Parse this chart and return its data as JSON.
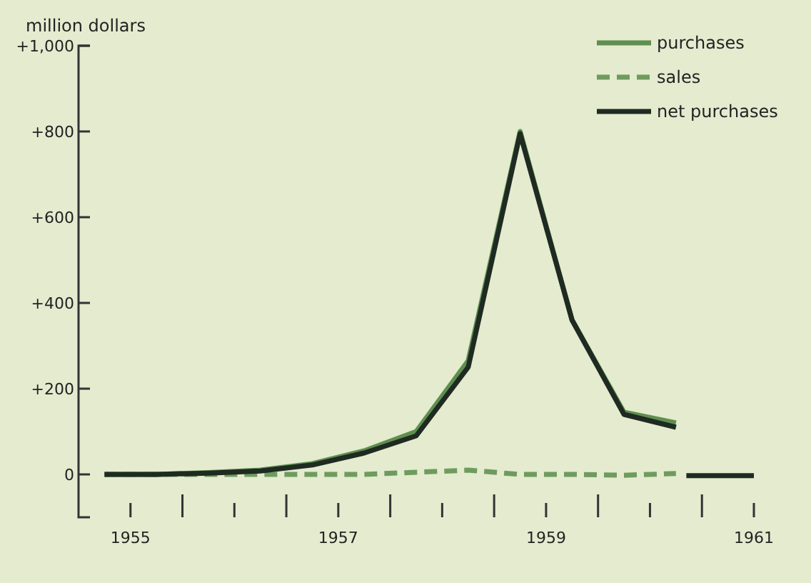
{
  "chart_data": {
    "type": "line",
    "ylabel": "million dollars",
    "xlim": [
      1954.5,
      1961
    ],
    "ylim": [
      -100,
      1000
    ],
    "xticks": [
      1955,
      {
        "value": 1955.5,
        "label": null
      },
      {
        "value": 1956,
        "label": null
      },
      {
        "value": 1956.5,
        "label": null
      },
      1957,
      {
        "value": 1957.5,
        "label": null
      },
      {
        "value": 1958,
        "label": null
      },
      {
        "value": 1958.5,
        "label": null
      },
      1959,
      {
        "value": 1959.5,
        "label": null
      },
      {
        "value": 1960,
        "label": null
      },
      {
        "value": 1960.5,
        "label": null
      },
      1961
    ],
    "yticks": [
      0,
      {
        "value": 200,
        "label": "+200"
      },
      {
        "value": 400,
        "label": "+400"
      },
      {
        "value": 600,
        "label": "+600"
      },
      {
        "value": 800,
        "label": "+800"
      },
      {
        "value": 1000,
        "label": "+1,000"
      }
    ],
    "grid": false,
    "legend": "top right",
    "marker": "none",
    "series": [
      {
        "name": "purchases",
        "color": "#5f8f4f",
        "line_style": "solid",
        "x": [
          1954.75,
          1955.25,
          1955.75,
          1956.25,
          1956.75,
          1957.25,
          1957.75,
          1958.25,
          1958.75,
          1959.25,
          1959.75,
          1960.25
        ],
        "values": [
          0,
          0,
          4,
          10,
          25,
          55,
          100,
          265,
          800,
          360,
          145,
          120
        ]
      },
      {
        "name": "sales",
        "color": "#6f9b5e",
        "line_style": "dashed",
        "x": [
          1954.75,
          1955.25,
          1955.75,
          1956.25,
          1956.75,
          1957.25,
          1957.75,
          1958.25,
          1958.75,
          1959.25,
          1959.75,
          1960.25
        ],
        "values": [
          0,
          0,
          0,
          0,
          0,
          0,
          5,
          10,
          0,
          0,
          -2,
          2
        ]
      },
      {
        "name": "net purchases",
        "color": "#1f2a22",
        "line_style": "solid",
        "x": [
          1954.75,
          1955.25,
          1955.75,
          1956.25,
          1956.75,
          1957.25,
          1957.75,
          1958.25,
          1958.75,
          1959.25,
          1959.75,
          1960.25,
          1960.3,
          1960.35,
          1961
        ],
        "values": [
          0,
          0,
          3,
          8,
          22,
          50,
          90,
          250,
          795,
          360,
          140,
          110,
          null,
          -3,
          -3
        ]
      }
    ]
  }
}
